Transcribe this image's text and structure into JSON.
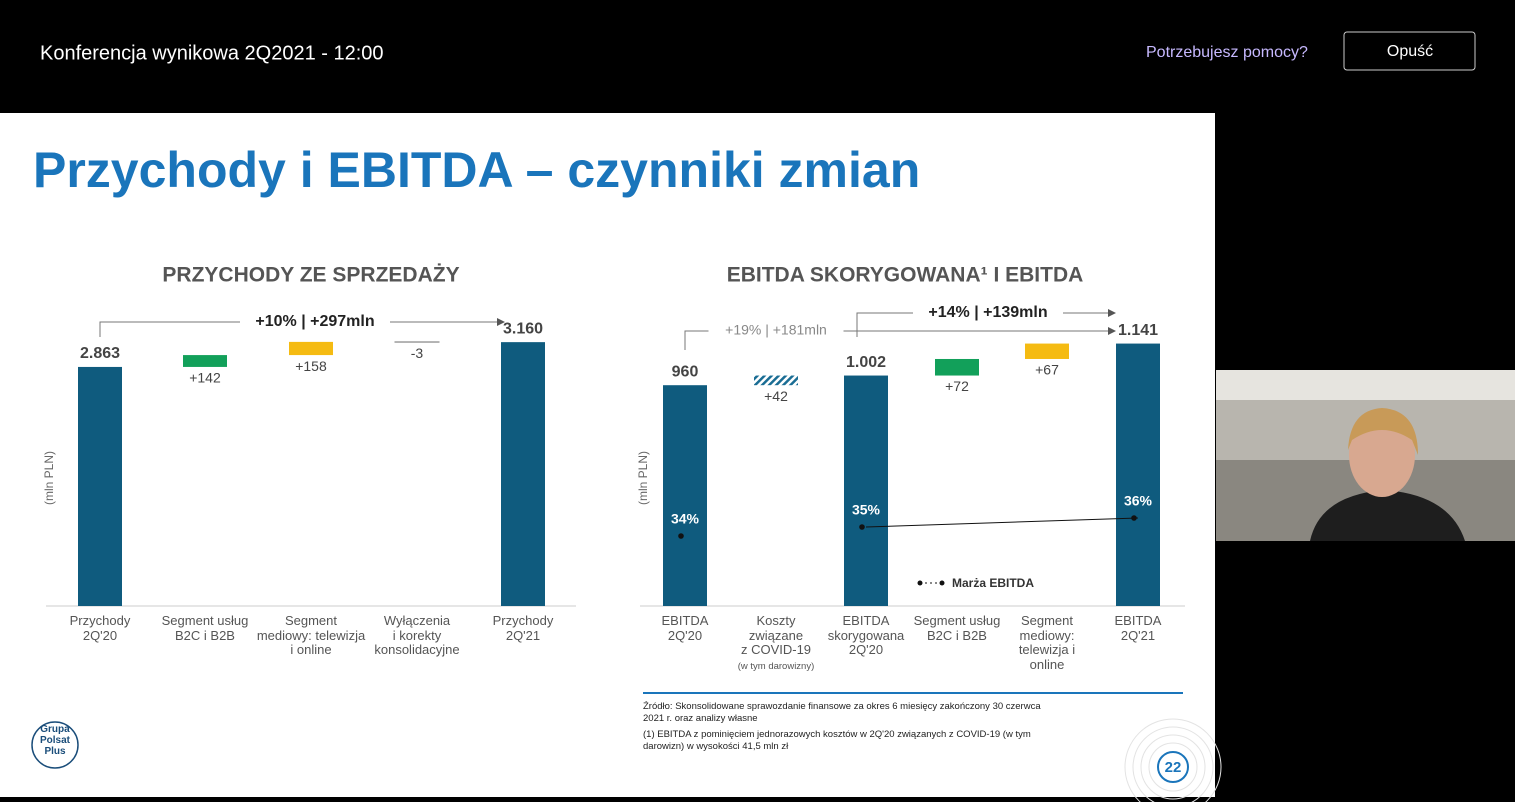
{
  "header": {
    "title": "Konferencja wynikowa 2Q2021 - 12:00",
    "help": "Potrzebujesz pomocy?",
    "leave": "Opuść"
  },
  "slide": {
    "title": "Przychody i EBITDA – czynniki zmian",
    "footnotes": [
      "Źródło: Skonsolidowane sprawozdanie finansowe za okres 6 miesięcy zakończony 30 czerwca 2021 r. oraz analizy własne",
      "(1) EBITDA z pominięciem jednorazowych kosztów w 2Q'20 związanych z COVID-19 (w tym darowizn) w wysokości 41,5 mln zł"
    ],
    "logo": "Grupa\nPolsat\nPlus",
    "page_number": "22"
  },
  "chart_data": [
    {
      "type": "waterfall",
      "title": "PRZYCHODY ZE SPRZEDAŻY",
      "y_label": "(mln PLN)",
      "categories": [
        "Przychody\n2Q'20",
        "Segment usług\nB2C i B2B",
        "Segment\nmediowy: telewizja\ni online",
        "Wyłączenia\ni korekty\nkonsolidacyjne",
        "Przychody\n2Q'21"
      ],
      "values": [
        2863,
        142,
        158,
        -3,
        3160
      ],
      "value_labels": [
        "2.863",
        "+142",
        "+158",
        "-3",
        "3.160"
      ],
      "bar_types": [
        "total",
        "increase",
        "increase",
        "decrease",
        "total"
      ],
      "colors": [
        "#0f5b7e",
        "#12a05a",
        "#f5bb12",
        "#888888",
        "#0f5b7e"
      ],
      "fills": [
        "solid",
        "solid",
        "solid",
        "solid",
        "solid"
      ],
      "annotations": [
        "+10% | +297mln"
      ]
    },
    {
      "type": "waterfall",
      "title": "EBITDA SKORYGOWANA¹ I EBITDA",
      "y_label": "(mln PLN)",
      "categories": [
        "EBITDA\n2Q'20",
        "Koszty\nzwiązane\nz COVID-19",
        "EBITDA\nskorygowana\n2Q'20",
        "Segment usług\nB2C i B2B",
        "Segment\nmediowy:\ntelewizja i\nonline",
        "EBITDA\n2Q'21"
      ],
      "category_note": "(w tym darowizny)",
      "values": [
        960,
        42,
        1002,
        72,
        67,
        1141
      ],
      "value_labels": [
        "960",
        "+42",
        "1.002",
        "+72",
        "+67",
        "1.141"
      ],
      "bar_types": [
        "total",
        "increase",
        "total",
        "increase",
        "increase",
        "total"
      ],
      "colors": [
        "#0f5b7e",
        "#1a6d94",
        "#0f5b7e",
        "#12a05a",
        "#f5bb12",
        "#0f5b7e"
      ],
      "fills": [
        "solid",
        "hatched",
        "solid",
        "solid",
        "solid",
        "solid"
      ],
      "annotations": [
        "+19% | +181mln",
        "+14% | +139mln"
      ],
      "series": [
        {
          "name": "Marża EBITDA",
          "color": "#111111",
          "values": [
            34,
            null,
            35,
            null,
            null,
            36
          ],
          "value_labels": [
            "34%",
            null,
            "35%",
            null,
            null,
            "36%"
          ]
        }
      ]
    }
  ]
}
